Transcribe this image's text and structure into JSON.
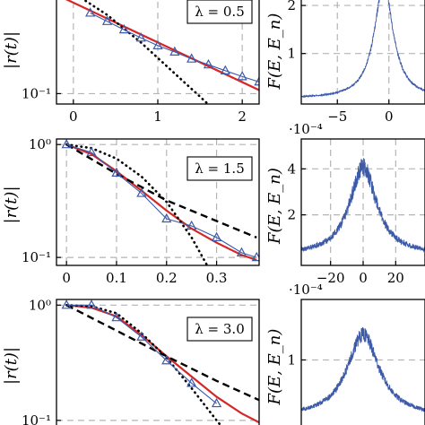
{
  "chart_data": [
    {
      "id": "r_lambda_05",
      "type": "line",
      "ylabel": "|r(t)|",
      "y_scale": "log",
      "ylim": [
        0.07,
        3.4
      ],
      "xlim": [
        -0.2,
        2.2
      ],
      "x_ticks": [
        0,
        1,
        2
      ],
      "x_tick_labels": [
        "0",
        "1",
        "2"
      ],
      "y_ticks": [
        0.1
      ],
      "y_tick_labels": [
        "10⁻¹"
      ],
      "annotation": "λ = 0.5",
      "series": [
        {
          "style": "red-solid",
          "x": [
            -0.2,
            2.2
          ],
          "y": [
            3.0,
            0.113
          ]
        },
        {
          "style": "black-dotted",
          "x": [
            -0.2,
            0,
            0.4,
            0.8,
            1.2,
            1.5,
            1.8
          ],
          "y": [
            4.6,
            3.2,
            1.5,
            0.58,
            0.2,
            0.09,
            0.04
          ]
        },
        {
          "style": "blue-triangles",
          "x": [
            0.2,
            0.4,
            0.6,
            0.8,
            1.0,
            1.2,
            1.4,
            1.6,
            1.8,
            2.0,
            2.2
          ],
          "y": [
            1.6,
            1.2,
            0.9,
            0.68,
            0.52,
            0.42,
            0.33,
            0.27,
            0.22,
            0.18,
            0.15
          ]
        }
      ]
    },
    {
      "id": "F_lambda_05",
      "type": "line",
      "ylabel": "F(E, E_n)",
      "xlim": [
        -8.5,
        3.5
      ],
      "ylim": [
        -0.05,
        2.3
      ],
      "x_ticks": [
        -5,
        0
      ],
      "x_tick_labels": [
        "−5",
        "0"
      ],
      "y_ticks": [
        1,
        2
      ],
      "y_tick_labels": [
        "1",
        "2"
      ],
      "peak_center": -0.5,
      "peak_height": 2.45,
      "peak_width": 1.1,
      "baseline": 0.06,
      "noise": 0.07
    },
    {
      "id": "r_lambda_15",
      "type": "line",
      "ylabel": "|r(t)|",
      "y_scale": "log",
      "ylim": [
        0.085,
        1.12
      ],
      "xlim": [
        -0.02,
        0.385
      ],
      "x_ticks": [
        0,
        0.1,
        0.2,
        0.3
      ],
      "x_tick_labels": [
        "0",
        "0.1",
        "0.2",
        "0.3"
      ],
      "y_ticks": [
        1,
        0.1
      ],
      "y_tick_labels": [
        "10⁰",
        "10⁻¹"
      ],
      "annotation": "λ = 1.5",
      "series": [
        {
          "style": "red-solid",
          "x": [
            0,
            0.05,
            0.1,
            0.15,
            0.2,
            0.25,
            0.3,
            0.35,
            0.38
          ],
          "y": [
            1.0,
            0.82,
            0.58,
            0.39,
            0.26,
            0.18,
            0.135,
            0.105,
            0.095
          ]
        },
        {
          "style": "black-dashed",
          "x": [
            0,
            0.1,
            0.2,
            0.3,
            0.38
          ],
          "y": [
            1.0,
            0.55,
            0.32,
            0.21,
            0.15
          ]
        },
        {
          "style": "black-dotted",
          "x": [
            0,
            0.05,
            0.1,
            0.15,
            0.2,
            0.25,
            0.3
          ],
          "y": [
            1.0,
            0.93,
            0.75,
            0.52,
            0.31,
            0.15,
            0.06
          ]
        },
        {
          "style": "blue-triangles",
          "x": [
            0,
            0.05,
            0.1,
            0.15,
            0.2,
            0.25,
            0.3,
            0.35,
            0.38
          ],
          "y": [
            1.0,
            0.85,
            0.56,
            0.37,
            0.22,
            0.19,
            0.15,
            0.11,
            0.1
          ]
        }
      ]
    },
    {
      "id": "F_lambda_15",
      "type": "line",
      "ylabel": "F(E, E_n)",
      "multiplier": "·10⁻⁴",
      "xlim": [
        -38,
        38
      ],
      "ylim": [
        -0.2,
        5.3
      ],
      "x_ticks": [
        -20,
        0,
        20
      ],
      "x_tick_labels": [
        "−20",
        "0",
        "20"
      ],
      "y_ticks": [
        2,
        4
      ],
      "y_tick_labels": [
        "2",
        "4"
      ],
      "peak_center": 0,
      "peak_height": 4.1,
      "peak_width": 10,
      "baseline": 0.25,
      "noise": 0.35
    },
    {
      "id": "r_lambda_30",
      "type": "line",
      "ylabel": "|r(t)|",
      "y_scale": "log",
      "ylim": [
        0.088,
        1.12
      ],
      "xlim": [
        -0.02,
        0.385
      ],
      "x_ticks": [],
      "x_tick_labels": [],
      "y_ticks": [
        1,
        0.1
      ],
      "y_tick_labels": [
        "10⁰",
        "10⁻¹"
      ],
      "annotation": "λ = 3.0",
      "series": [
        {
          "style": "red-solid",
          "x": [
            0,
            0.05,
            0.1,
            0.15,
            0.2,
            0.25,
            0.3,
            0.35,
            0.385
          ],
          "y": [
            1.0,
            0.95,
            0.8,
            0.55,
            0.36,
            0.24,
            0.16,
            0.115,
            0.096
          ]
        },
        {
          "style": "black-dashed",
          "x": [
            0,
            0.1,
            0.2,
            0.3,
            0.385
          ],
          "y": [
            1.0,
            0.6,
            0.36,
            0.22,
            0.15
          ]
        },
        {
          "style": "black-dotted",
          "x": [
            0,
            0.05,
            0.1,
            0.15,
            0.2,
            0.25,
            0.3,
            0.33
          ],
          "y": [
            1.0,
            0.98,
            0.85,
            0.57,
            0.35,
            0.19,
            0.1,
            0.07
          ]
        },
        {
          "style": "blue-triangles",
          "x": [
            0,
            0.05,
            0.1,
            0.15,
            0.2,
            0.25,
            0.3
          ],
          "y": [
            1.0,
            1.0,
            0.78,
            0.53,
            0.33,
            0.21,
            0.14
          ]
        }
      ]
    },
    {
      "id": "F_lambda_30",
      "type": "line",
      "ylabel": "F(E, E_n)",
      "multiplier": "·10⁻⁴",
      "xlim": [
        -38,
        38
      ],
      "ylim": [
        -0.05,
        1.95
      ],
      "x_ticks": [],
      "x_tick_labels": [],
      "y_ticks": [
        1
      ],
      "y_tick_labels": [
        "1"
      ],
      "peak_center": 0,
      "peak_height": 1.4,
      "peak_width": 12,
      "baseline": 0.1,
      "noise": 0.1
    }
  ],
  "colors": {
    "red": "#d62728",
    "blue": "#3c5aa8",
    "black": "#000000",
    "grid": "#b4b4b4"
  }
}
